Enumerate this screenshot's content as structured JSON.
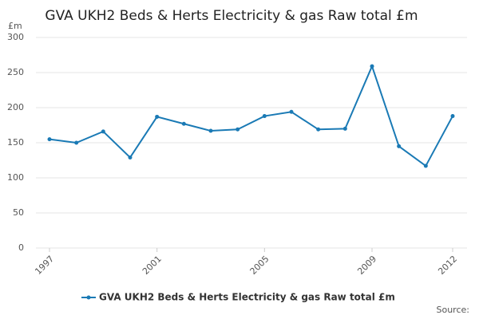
{
  "chart_data": {
    "type": "line",
    "title": "GVA UKH2 Beds & Herts Electricity & gas Raw total £m",
    "y_label": "£m",
    "source": "Source:",
    "x": [
      1997,
      1998,
      1999,
      2000,
      2001,
      2002,
      2003,
      2004,
      2005,
      2006,
      2007,
      2008,
      2009,
      2010,
      2011,
      2012
    ],
    "series": [
      {
        "name": "GVA UKH2 Beds & Herts Electricity & gas Raw total £m",
        "color": "#1a7ab5",
        "values": [
          155,
          150,
          166,
          129,
          187,
          177,
          167,
          169,
          188,
          194,
          169,
          170,
          259,
          145,
          117,
          188
        ]
      }
    ],
    "xlim": [
      1997,
      2012
    ],
    "xticks": [
      1997,
      2001,
      2005,
      2009,
      2012
    ],
    "ylim": [
      0,
      300
    ],
    "yticks": [
      0,
      50,
      100,
      150,
      200,
      250,
      300
    ],
    "grid": true
  }
}
